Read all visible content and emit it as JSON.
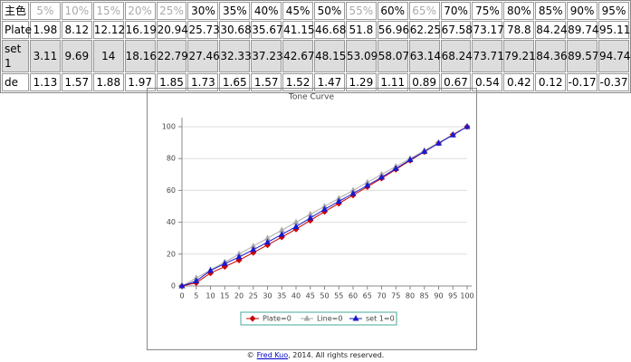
{
  "table": {
    "header": [
      "主色",
      "5%",
      "10%",
      "15%",
      "20%",
      "25%",
      "30%",
      "35%",
      "40%",
      "45%",
      "50%",
      "55%",
      "60%",
      "65%",
      "70%",
      "75%",
      "80%",
      "85%",
      "90%",
      "95%"
    ],
    "rows": [
      [
        "Plate",
        1.98,
        8.12,
        12.12,
        16.19,
        20.94,
        25.73,
        30.68,
        35.67,
        41.15,
        46.68,
        51.8,
        56.96,
        62.25,
        67.58,
        73.17,
        78.8,
        84.24,
        89.74,
        95.11
      ],
      [
        "set 1",
        3.11,
        9.69,
        14,
        18.16,
        22.79,
        27.46,
        32.33,
        37.23,
        42.67,
        48.15,
        53.09,
        58.07,
        63.14,
        68.24,
        73.71,
        79.21,
        84.36,
        89.57,
        94.74
      ],
      [
        "de",
        1.13,
        1.57,
        1.88,
        1.97,
        1.85,
        1.73,
        1.65,
        1.57,
        1.52,
        1.47,
        1.29,
        1.11,
        0.89,
        0.67,
        0.54,
        0.42,
        0.12,
        -0.17,
        -0.37
      ]
    ]
  },
  "chart_data": {
    "type": "line",
    "title": "Tone Curve",
    "x": [
      0,
      5,
      10,
      15,
      20,
      25,
      30,
      35,
      40,
      45,
      50,
      55,
      60,
      65,
      70,
      75,
      80,
      85,
      90,
      95,
      100
    ],
    "xlim": [
      0,
      100
    ],
    "xticks": [
      0,
      5,
      10,
      15,
      20,
      25,
      30,
      35,
      40,
      45,
      50,
      55,
      60,
      65,
      70,
      75,
      80,
      85,
      90,
      95,
      100
    ],
    "ylim": [
      0,
      100
    ],
    "yticks": [
      0,
      20,
      40,
      60,
      80,
      100
    ],
    "grid": true,
    "legend": "bottom",
    "series": [
      {
        "name": "Plate=0",
        "color": "#cc0000",
        "marker": "diamond",
        "values": [
          0,
          1.98,
          8.12,
          12.12,
          16.19,
          20.94,
          25.73,
          30.68,
          35.67,
          41.15,
          46.68,
          51.8,
          56.96,
          62.25,
          67.58,
          73.17,
          78.8,
          84.24,
          89.74,
          95.11,
          100
        ]
      },
      {
        "name": "Line=0",
        "color": "#aaaaaa",
        "marker": "triangle",
        "values": [
          0,
          5,
          10,
          15,
          20,
          25,
          30,
          35,
          40,
          45,
          50,
          55,
          60,
          65,
          70,
          75,
          80,
          85,
          90,
          95,
          100
        ]
      },
      {
        "name": "set 1=0",
        "color": "#1a1acc",
        "marker": "triangle",
        "values": [
          0,
          3.11,
          9.69,
          14,
          18.16,
          22.79,
          27.46,
          32.33,
          37.23,
          42.67,
          48.15,
          53.09,
          58.07,
          63.14,
          68.24,
          73.71,
          79.21,
          84.36,
          89.57,
          94.74,
          100
        ]
      }
    ]
  },
  "footer": {
    "prefix": "©",
    "link": "Fred Kuo",
    "suffix": ", 2014. All rights reserved."
  }
}
